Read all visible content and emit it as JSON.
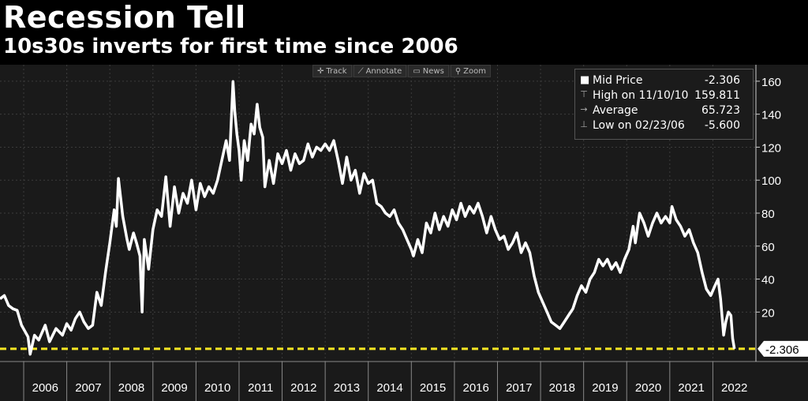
{
  "header": {
    "title": "Recession Tell",
    "subtitle": "10s30s inverts for first time since 2006"
  },
  "toolbar": {
    "track": "Track",
    "annotate": "Annotate",
    "news": "News",
    "zoom": "Zoom"
  },
  "legend": {
    "mid_label": "Mid Price",
    "mid_value": "-2.306",
    "high_label": "High on 11/10/10",
    "high_value": "159.811",
    "avg_label": "Average",
    "avg_value": "65.723",
    "low_label": "Low on 02/23/06",
    "low_value": "-5.600"
  },
  "last_value_label": "-2.306",
  "colors": {
    "background": "#1a1a1a",
    "line": "#ffffff",
    "reference_line": "#f5e623"
  },
  "chart_data": {
    "type": "line",
    "title": "Recession Tell",
    "subtitle": "10s30s inverts for first time since 2006",
    "xlabel": "",
    "ylabel": "",
    "ylim": [
      -10,
      170
    ],
    "xlim": [
      2005.45,
      2023.0
    ],
    "yticks": [
      20,
      40,
      60,
      80,
      100,
      120,
      140,
      160
    ],
    "xtick_labels": [
      "2006",
      "2007",
      "2008",
      "2009",
      "2010",
      "2011",
      "2012",
      "2013",
      "2014",
      "2015",
      "2016",
      "2017",
      "2018",
      "2019",
      "2020",
      "2021",
      "2022"
    ],
    "reference_line": {
      "value": -2.306,
      "style": "dashed"
    },
    "series": [
      {
        "name": "Mid Price",
        "points": [
          [
            2005.45,
            28
          ],
          [
            2005.55,
            30
          ],
          [
            2005.65,
            24
          ],
          [
            2005.75,
            22
          ],
          [
            2005.85,
            21
          ],
          [
            2005.95,
            12
          ],
          [
            2006.1,
            5
          ],
          [
            2006.15,
            -5.6
          ],
          [
            2006.25,
            6
          ],
          [
            2006.35,
            3
          ],
          [
            2006.5,
            12
          ],
          [
            2006.6,
            2
          ],
          [
            2006.75,
            10
          ],
          [
            2006.9,
            6
          ],
          [
            2007.0,
            13
          ],
          [
            2007.1,
            9
          ],
          [
            2007.2,
            16
          ],
          [
            2007.3,
            20
          ],
          [
            2007.4,
            14
          ],
          [
            2007.5,
            10
          ],
          [
            2007.6,
            12
          ],
          [
            2007.7,
            32
          ],
          [
            2007.8,
            24
          ],
          [
            2007.9,
            44
          ],
          [
            2008.0,
            62
          ],
          [
            2008.1,
            82
          ],
          [
            2008.15,
            72
          ],
          [
            2008.2,
            101
          ],
          [
            2008.3,
            78
          ],
          [
            2008.4,
            64
          ],
          [
            2008.45,
            58
          ],
          [
            2008.55,
            68
          ],
          [
            2008.62,
            62
          ],
          [
            2008.7,
            54
          ],
          [
            2008.75,
            20
          ],
          [
            2008.8,
            64
          ],
          [
            2008.9,
            46
          ],
          [
            2009.0,
            70
          ],
          [
            2009.1,
            82
          ],
          [
            2009.2,
            78
          ],
          [
            2009.3,
            102
          ],
          [
            2009.4,
            72
          ],
          [
            2009.5,
            96
          ],
          [
            2009.6,
            80
          ],
          [
            2009.7,
            92
          ],
          [
            2009.8,
            86
          ],
          [
            2009.9,
            100
          ],
          [
            2010.0,
            82
          ],
          [
            2010.1,
            98
          ],
          [
            2010.2,
            90
          ],
          [
            2010.3,
            96
          ],
          [
            2010.4,
            92
          ],
          [
            2010.5,
            100
          ],
          [
            2010.6,
            112
          ],
          [
            2010.7,
            124
          ],
          [
            2010.78,
            112
          ],
          [
            2010.86,
            159.8
          ],
          [
            2010.9,
            142
          ],
          [
            2010.95,
            128
          ],
          [
            2011.0,
            118
          ],
          [
            2011.05,
            100
          ],
          [
            2011.12,
            124
          ],
          [
            2011.2,
            112
          ],
          [
            2011.28,
            134
          ],
          [
            2011.35,
            128
          ],
          [
            2011.42,
            146
          ],
          [
            2011.48,
            132
          ],
          [
            2011.55,
            126
          ],
          [
            2011.6,
            96
          ],
          [
            2011.7,
            112
          ],
          [
            2011.8,
            98
          ],
          [
            2011.9,
            116
          ],
          [
            2012.0,
            110
          ],
          [
            2012.1,
            118
          ],
          [
            2012.2,
            106
          ],
          [
            2012.3,
            116
          ],
          [
            2012.4,
            110
          ],
          [
            2012.5,
            112
          ],
          [
            2012.6,
            122
          ],
          [
            2012.7,
            114
          ],
          [
            2012.8,
            120
          ],
          [
            2012.9,
            118
          ],
          [
            2013.0,
            122
          ],
          [
            2013.1,
            118
          ],
          [
            2013.2,
            124
          ],
          [
            2013.3,
            112
          ],
          [
            2013.4,
            98
          ],
          [
            2013.5,
            114
          ],
          [
            2013.6,
            100
          ],
          [
            2013.7,
            106
          ],
          [
            2013.8,
            92
          ],
          [
            2013.9,
            104
          ],
          [
            2014.0,
            98
          ],
          [
            2014.1,
            100
          ],
          [
            2014.2,
            86
          ],
          [
            2014.3,
            84
          ],
          [
            2014.4,
            80
          ],
          [
            2014.5,
            78
          ],
          [
            2014.6,
            82
          ],
          [
            2014.7,
            74
          ],
          [
            2014.8,
            70
          ],
          [
            2014.9,
            64
          ],
          [
            2015.0,
            58
          ],
          [
            2015.05,
            54
          ],
          [
            2015.15,
            64
          ],
          [
            2015.25,
            56
          ],
          [
            2015.35,
            74
          ],
          [
            2015.45,
            68
          ],
          [
            2015.55,
            80
          ],
          [
            2015.65,
            70
          ],
          [
            2015.75,
            78
          ],
          [
            2015.85,
            72
          ],
          [
            2015.95,
            82
          ],
          [
            2016.05,
            76
          ],
          [
            2016.15,
            86
          ],
          [
            2016.25,
            78
          ],
          [
            2016.35,
            84
          ],
          [
            2016.45,
            80
          ],
          [
            2016.55,
            86
          ],
          [
            2016.65,
            78
          ],
          [
            2016.75,
            68
          ],
          [
            2016.85,
            78
          ],
          [
            2016.95,
            70
          ],
          [
            2017.05,
            64
          ],
          [
            2017.15,
            66
          ],
          [
            2017.25,
            58
          ],
          [
            2017.35,
            62
          ],
          [
            2017.45,
            68
          ],
          [
            2017.55,
            56
          ],
          [
            2017.65,
            62
          ],
          [
            2017.75,
            56
          ],
          [
            2017.85,
            42
          ],
          [
            2017.95,
            32
          ],
          [
            2018.05,
            26
          ],
          [
            2018.15,
            20
          ],
          [
            2018.25,
            14
          ],
          [
            2018.35,
            12
          ],
          [
            2018.45,
            10
          ],
          [
            2018.55,
            14
          ],
          [
            2018.65,
            18
          ],
          [
            2018.75,
            22
          ],
          [
            2018.85,
            30
          ],
          [
            2018.95,
            36
          ],
          [
            2019.05,
            32
          ],
          [
            2019.15,
            40
          ],
          [
            2019.25,
            44
          ],
          [
            2019.35,
            52
          ],
          [
            2019.45,
            48
          ],
          [
            2019.55,
            52
          ],
          [
            2019.65,
            46
          ],
          [
            2019.75,
            50
          ],
          [
            2019.85,
            44
          ],
          [
            2019.95,
            52
          ],
          [
            2020.05,
            58
          ],
          [
            2020.15,
            72
          ],
          [
            2020.2,
            62
          ],
          [
            2020.3,
            80
          ],
          [
            2020.4,
            74
          ],
          [
            2020.5,
            66
          ],
          [
            2020.6,
            74
          ],
          [
            2020.7,
            80
          ],
          [
            2020.8,
            74
          ],
          [
            2020.9,
            78
          ],
          [
            2021.0,
            74
          ],
          [
            2021.05,
            84
          ],
          [
            2021.15,
            76
          ],
          [
            2021.25,
            72
          ],
          [
            2021.35,
            66
          ],
          [
            2021.45,
            70
          ],
          [
            2021.55,
            62
          ],
          [
            2021.65,
            56
          ],
          [
            2021.75,
            44
          ],
          [
            2021.85,
            34
          ],
          [
            2021.95,
            30
          ],
          [
            2022.05,
            36
          ],
          [
            2022.12,
            40
          ],
          [
            2022.18,
            28
          ],
          [
            2022.25,
            6
          ],
          [
            2022.3,
            14
          ],
          [
            2022.36,
            20
          ],
          [
            2022.42,
            18
          ],
          [
            2022.46,
            4
          ],
          [
            2022.5,
            -2.306
          ]
        ]
      }
    ]
  }
}
